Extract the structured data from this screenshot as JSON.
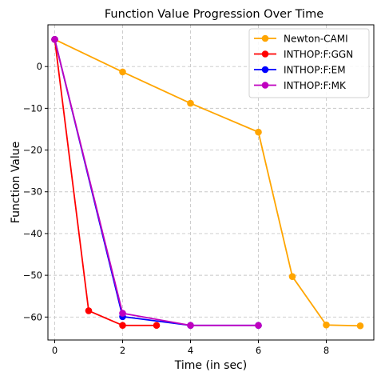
{
  "chart_data": {
    "type": "line",
    "title": "Function Value Progression Over Time",
    "xlabel": "Time (in sec)",
    "ylabel": "Function Value",
    "xlim": [
      -0.2,
      9.4
    ],
    "ylim": [
      -65.5,
      10
    ],
    "xticks": [
      0,
      2,
      4,
      6,
      8
    ],
    "yticks": [
      0,
      -10,
      -20,
      -30,
      -40,
      -50,
      -60
    ],
    "grid": true,
    "legend_position": "top-right",
    "series": [
      {
        "name": "Newton-CAMI",
        "color": "#FFA500",
        "x": [
          0,
          2,
          4,
          6,
          7,
          8,
          9
        ],
        "y": [
          6.5,
          -1.3,
          -8.8,
          -15.7,
          -50.3,
          -61.9,
          -62.1
        ]
      },
      {
        "name": "INTHOP:F:GGN",
        "color": "#FF0000",
        "x": [
          0,
          1,
          2,
          3
        ],
        "y": [
          6.5,
          -58.5,
          -62.0,
          -62.0
        ]
      },
      {
        "name": "INTHOP:F:EM",
        "color": "#0000FF",
        "x": [
          0,
          2,
          4,
          6
        ],
        "y": [
          6.5,
          -59.9,
          -62.0,
          -62.0
        ]
      },
      {
        "name": "INTHOP:F:MK",
        "color": "#BF00BF",
        "x": [
          0,
          2,
          4,
          6
        ],
        "y": [
          6.5,
          -59.1,
          -62.0,
          -62.0
        ]
      }
    ]
  }
}
